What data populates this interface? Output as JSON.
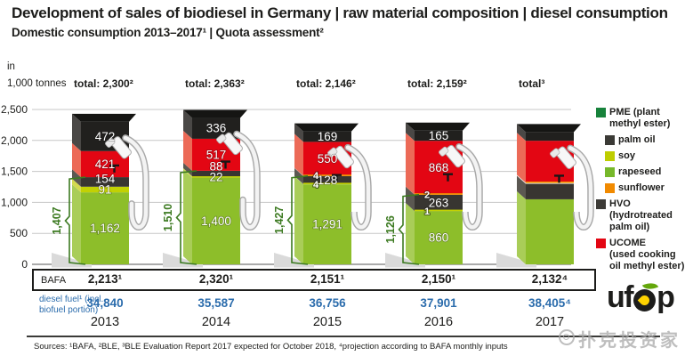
{
  "header": {
    "title": "Development of sales of biodiesel in Germany | raw material composition | diesel consumption",
    "subtitle": "Domestic consumption 2013–2017¹ | Quota assessment²"
  },
  "axis_unit": {
    "line1": "in",
    "line2": "1,000 tonnes"
  },
  "chart_data": {
    "type": "bar",
    "stacked": true,
    "unit": "1,000 tonnes",
    "categories": [
      "2013",
      "2014",
      "2015",
      "2016",
      "2017"
    ],
    "ylim": [
      0,
      2500
    ],
    "grid": true,
    "legend_position": "right",
    "yticks": [
      {
        "v": 0,
        "label": "0"
      },
      {
        "v": 500,
        "label": "500"
      },
      {
        "v": 1000,
        "label": "1,000"
      },
      {
        "v": 1500,
        "label": "1,500"
      },
      {
        "v": 2000,
        "label": "2,000"
      },
      {
        "v": 2500,
        "label": "2,500"
      }
    ],
    "totals_labels": [
      "total: 2,300²",
      "total: 2,363²",
      "total: 2,146²",
      "total: 2,159²",
      "total³"
    ],
    "series": [
      {
        "name": "rapeseed",
        "color": "#8dbe2a",
        "side": "#a9cd58",
        "values": [
          1162,
          1400,
          1291,
          860,
          1050
        ]
      },
      {
        "name": "soy",
        "color": "#c2d103",
        "side": "#d3da4f",
        "values": [
          91,
          22,
          4,
          1,
          0
        ]
      },
      {
        "name": "HVO (hydrotreated palm oil)",
        "color": "#383531",
        "side": "#5b5852",
        "values": [
          154,
          88,
          128,
          263,
          250
        ]
      },
      {
        "name": "sunflower",
        "color": "#f39200",
        "side": "#f7b84e",
        "values": [
          0,
          0,
          4,
          2,
          15
        ]
      },
      {
        "name": "UCOME (used cooking oil methyl ester)",
        "color": "#e30613",
        "side": "#ec6a57",
        "values": [
          421,
          517,
          550,
          868,
          680
        ]
      },
      {
        "name": "palm oil",
        "color": "#21201e",
        "side": "#4a4846",
        "values": [
          472,
          336,
          169,
          165,
          140
        ]
      }
    ],
    "segment_labels": [
      [
        "1,162",
        "91",
        "154",
        null,
        "421",
        "472"
      ],
      [
        "1,400",
        "22",
        "88",
        null,
        "517",
        "336"
      ],
      [
        "1,291",
        "4",
        "128",
        "4",
        "550",
        "169"
      ],
      [
        "860",
        "1",
        "263",
        "2",
        "868",
        "165"
      ],
      [
        null,
        null,
        null,
        null,
        null,
        null
      ]
    ],
    "brackets": [
      {
        "label": "1,407",
        "value": 1407
      },
      {
        "label": "1,510",
        "value": 1510
      },
      {
        "label": "1,427",
        "value": 1427
      },
      {
        "label": "1,126",
        "value": 1126
      },
      null
    ]
  },
  "legend": {
    "items": [
      {
        "label": "PME (plant\nmethyl ester)",
        "color": "#17823b",
        "indent": 0
      },
      {
        "label": "palm oil",
        "color": "#3b3a36",
        "indent": 1
      },
      {
        "label": "soy",
        "color": "#becd00",
        "indent": 1
      },
      {
        "label": "rapeseed",
        "color": "#76b82a",
        "indent": 1
      },
      {
        "label": "sunflower",
        "color": "#f18a00",
        "indent": 1
      },
      {
        "label": "HVO (hydrotreated\npalm oil)",
        "color": "#3d3b37",
        "indent": 0
      },
      {
        "label": "UCOME\n(used cooking\noil methyl ester)",
        "color": "#e30613",
        "indent": 0
      }
    ]
  },
  "table": {
    "bafa_label": "BAFA",
    "bafa_values": [
      "2,213¹",
      "2,320¹",
      "2,151¹",
      "2,150¹",
      "2,132⁴"
    ],
    "diesel_label": "diesel fuel¹ (incl.\nbiofuel portion)",
    "diesel_values": [
      "34,840",
      "35,587",
      "36,756",
      "37,901",
      "38,405⁴"
    ],
    "years": [
      "2013",
      "2014",
      "2015",
      "2016",
      "2017"
    ]
  },
  "footer": {
    "sources": "Sources: ¹BAFA, ²BLE, ³BLE Evaluation Report 2017 expected for October 2018, ⁴projection according to BAFA monthly inputs"
  },
  "logo": {
    "prefix": "uf",
    "suffix": "p",
    "name": "ufop"
  },
  "watermark": {
    "text": "扑克投资家"
  },
  "colors": {
    "accent_green": "#3c7a21",
    "text_blue": "#2b6cac",
    "grid": "#c7c7c7",
    "axis": "#8f8f8f",
    "ink": "#1d1d1b",
    "bar_top_face": "#151513"
  }
}
